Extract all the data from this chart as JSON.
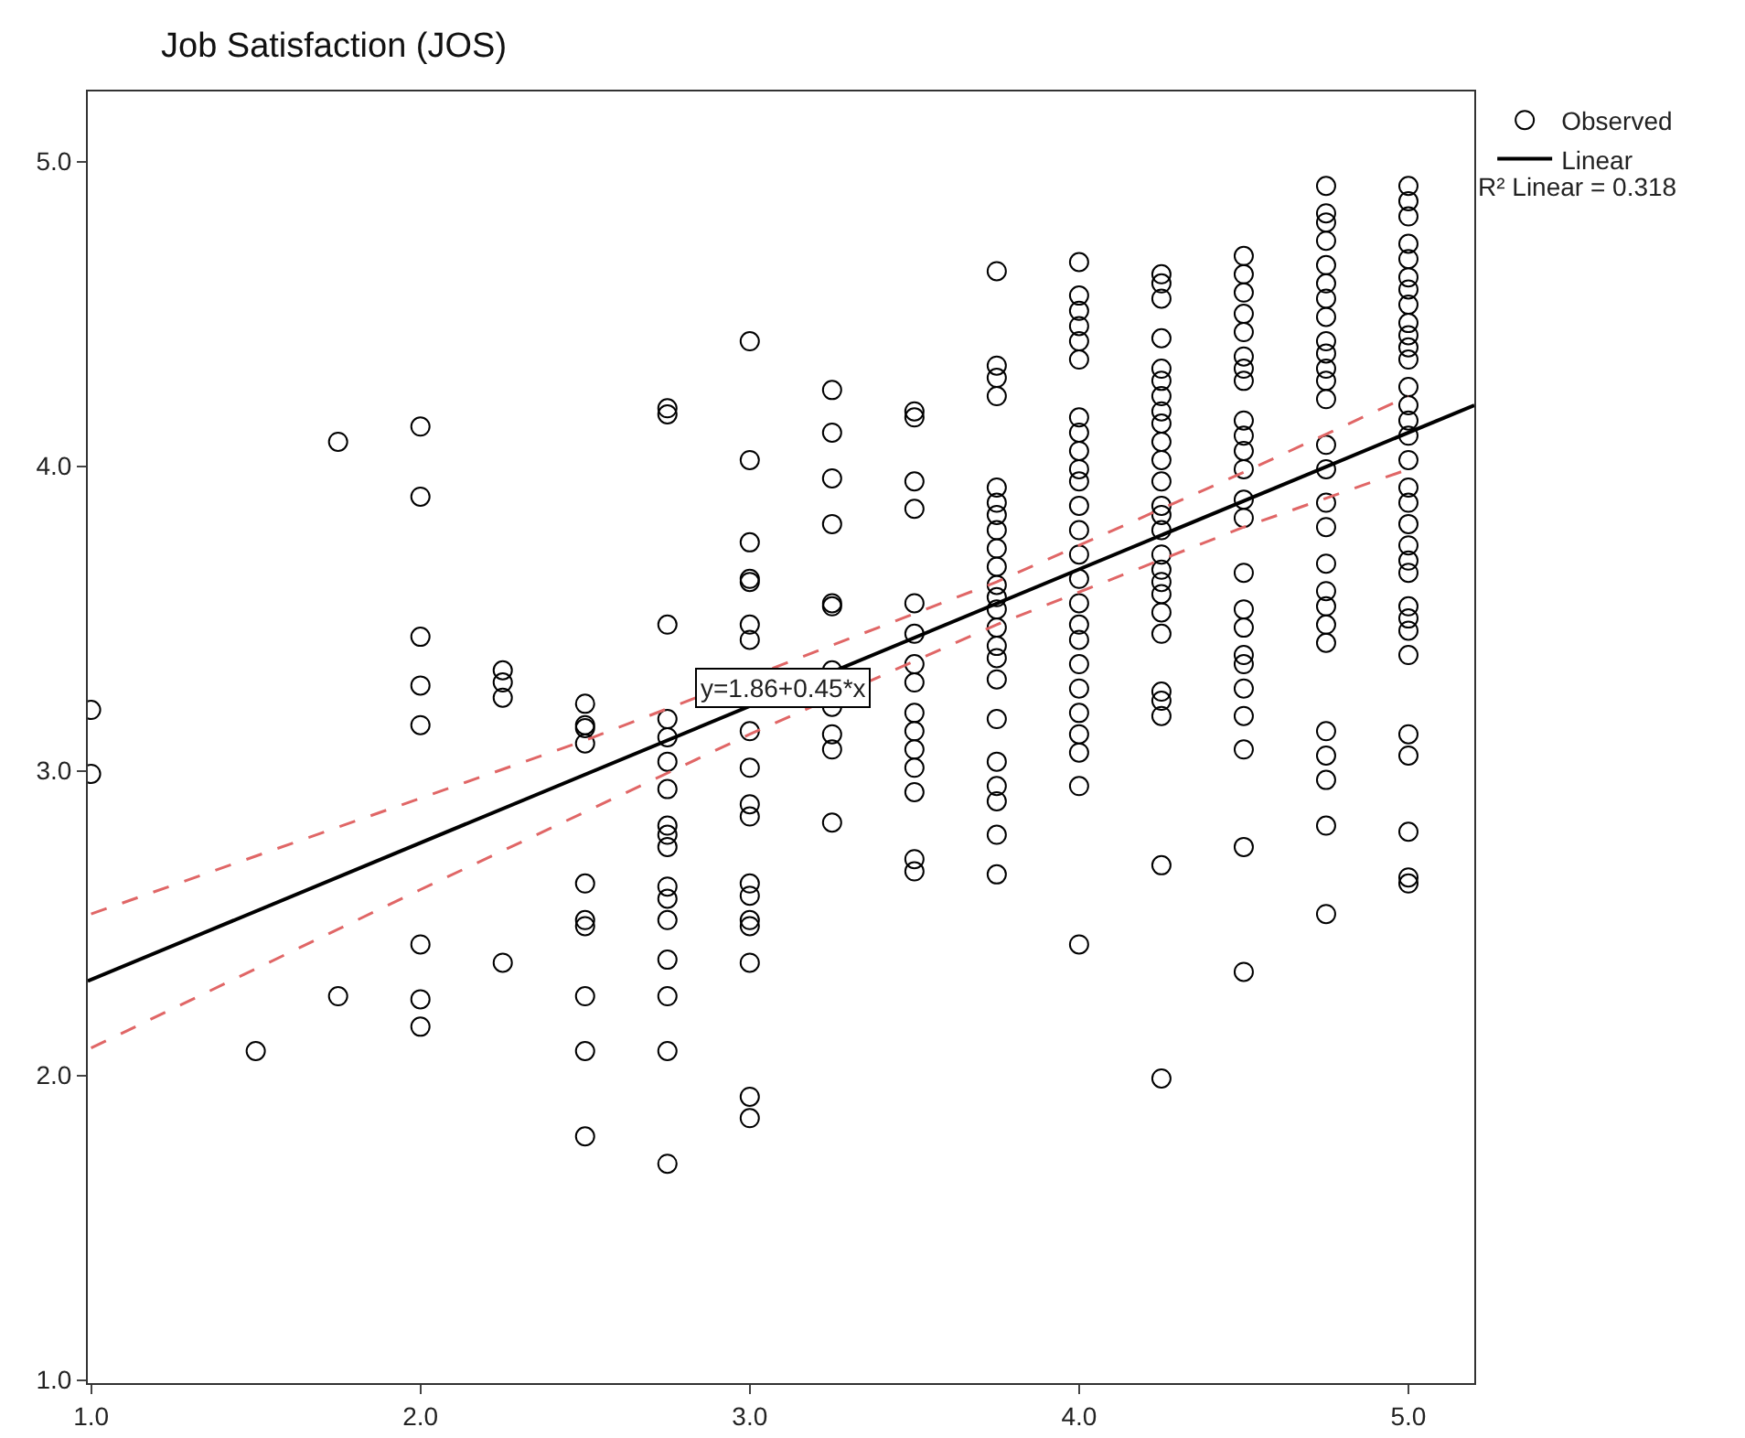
{
  "chart_data": {
    "type": "scatter",
    "ylabel": "Job Satisfaction (JOS)",
    "xlim": [
      0.99,
      5.2
    ],
    "ylim": [
      0.99,
      5.23
    ],
    "xticks": [
      {
        "value": 1,
        "label": "1.0"
      },
      {
        "value": 2,
        "label": "2.0"
      },
      {
        "value": 3,
        "label": "3.0"
      },
      {
        "value": 4,
        "label": "4.0"
      },
      {
        "value": 5,
        "label": "5.0"
      }
    ],
    "yticks": [
      {
        "value": 1,
        "label": "1.0"
      },
      {
        "value": 2,
        "label": "2.0"
      },
      {
        "value": 3,
        "label": "3.0"
      },
      {
        "value": 4,
        "label": "4.0"
      },
      {
        "value": 5,
        "label": "5.0"
      }
    ],
    "legend": "top right",
    "grid": false,
    "annotations": [
      {
        "text": "y=1.86+0.45*x",
        "x": 3.1,
        "y": 3.27
      },
      "R² Linear = 0.318"
    ],
    "series": [
      {
        "name": "Observed",
        "marker": "circle",
        "color": "#000000",
        "x": [
          1,
          1,
          1.5,
          1.75,
          1.75,
          2,
          2,
          2,
          2,
          2,
          2,
          2,
          2,
          2.25,
          2.25,
          2.25,
          2.25,
          2.5,
          2.5,
          2.5,
          2.5,
          2.5,
          2.5,
          2.5,
          2.5,
          2.5,
          2.5,
          2.75,
          2.75,
          2.75,
          2.75,
          2.75,
          2.75,
          2.75,
          2.75,
          2.75,
          2.75,
          2.75,
          2.75,
          2.75,
          2.75,
          2.75,
          2.75,
          2.75,
          3,
          3,
          3,
          3,
          3,
          3,
          3,
          3,
          3,
          3,
          3,
          3,
          3,
          3,
          3,
          3,
          3,
          3,
          3.25,
          3.25,
          3.25,
          3.25,
          3.25,
          3.25,
          3.25,
          3.25,
          3.25,
          3.25,
          3.25,
          3.5,
          3.5,
          3.5,
          3.5,
          3.5,
          3.5,
          3.5,
          3.5,
          3.5,
          3.5,
          3.5,
          3.5,
          3.5,
          3.5,
          3.5,
          3.75,
          3.75,
          3.75,
          3.75,
          3.75,
          3.75,
          3.75,
          3.75,
          3.75,
          3.75,
          3.75,
          3.75,
          3.75,
          3.75,
          3.75,
          3.75,
          3.75,
          3.75,
          3.75,
          3.75,
          3.75,
          3.75,
          3.75,
          4,
          4,
          4,
          4,
          4,
          4,
          4,
          4,
          4,
          4,
          4,
          4,
          4,
          4,
          4,
          4,
          4,
          4,
          4,
          4,
          4,
          4,
          4,
          4,
          4,
          4.25,
          4.25,
          4.25,
          4.25,
          4.25,
          4.25,
          4.25,
          4.25,
          4.25,
          4.25,
          4.25,
          4.25,
          4.25,
          4.25,
          4.25,
          4.25,
          4.25,
          4.25,
          4.25,
          4.25,
          4.25,
          4.25,
          4.25,
          4.25,
          4.25,
          4.25,
          4.5,
          4.5,
          4.5,
          4.5,
          4.5,
          4.5,
          4.5,
          4.5,
          4.5,
          4.5,
          4.5,
          4.5,
          4.5,
          4.5,
          4.5,
          4.5,
          4.5,
          4.5,
          4.5,
          4.5,
          4.5,
          4.5,
          4.5,
          4.5,
          4.75,
          4.75,
          4.75,
          4.75,
          4.75,
          4.75,
          4.75,
          4.75,
          4.75,
          4.75,
          4.75,
          4.75,
          4.75,
          4.75,
          4.75,
          4.75,
          4.75,
          4.75,
          4.75,
          4.75,
          4.75,
          4.75,
          4.75,
          4.75,
          4.75,
          4.75,
          4.75,
          5,
          5,
          5,
          5,
          5,
          5,
          5,
          5,
          5,
          5,
          5,
          5,
          5,
          5,
          5,
          5,
          5,
          5,
          5,
          5,
          5,
          5,
          5,
          5,
          5,
          5,
          5,
          5,
          5,
          5,
          5,
          5
        ],
        "values": [
          3.2,
          2.99,
          2.08,
          4.08,
          2.26,
          4.13,
          3.9,
          3.44,
          3.28,
          3.15,
          2.43,
          2.25,
          2.16,
          3.33,
          3.29,
          3.24,
          2.37,
          3.22,
          3.15,
          3.14,
          3.09,
          2.63,
          2.51,
          2.49,
          2.26,
          2.08,
          1.8,
          4.19,
          4.17,
          3.48,
          3.17,
          3.11,
          3.03,
          2.94,
          2.82,
          2.79,
          2.75,
          2.62,
          2.58,
          2.51,
          2.38,
          2.26,
          2.08,
          1.71,
          4.41,
          4.02,
          3.75,
          3.63,
          3.62,
          3.48,
          3.43,
          3.13,
          3.01,
          2.89,
          2.85,
          2.63,
          2.59,
          2.51,
          2.49,
          2.37,
          1.93,
          1.86,
          4.25,
          4.11,
          3.96,
          3.81,
          3.55,
          3.54,
          3.33,
          3.21,
          3.12,
          3.07,
          2.83,
          4.18,
          4.16,
          3.95,
          3.86,
          3.55,
          3.45,
          3.35,
          3.29,
          3.19,
          3.13,
          3.07,
          3.01,
          2.93,
          2.71,
          2.67,
          4.64,
          4.33,
          4.29,
          4.23,
          3.93,
          3.88,
          3.84,
          3.79,
          3.73,
          3.67,
          3.61,
          3.57,
          3.53,
          3.47,
          3.41,
          3.37,
          3.3,
          3.17,
          3.03,
          2.95,
          2.9,
          2.79,
          2.66,
          4.67,
          4.56,
          4.51,
          4.46,
          4.41,
          4.35,
          4.16,
          4.11,
          4.05,
          3.99,
          3.95,
          3.87,
          3.79,
          3.71,
          3.63,
          3.55,
          3.48,
          3.43,
          3.35,
          3.27,
          3.19,
          3.12,
          3.06,
          2.95,
          2.43,
          4.63,
          4.6,
          4.55,
          4.42,
          4.32,
          4.28,
          4.23,
          4.18,
          4.14,
          4.08,
          4.02,
          3.95,
          3.87,
          3.84,
          3.79,
          3.71,
          3.66,
          3.62,
          3.58,
          3.52,
          3.45,
          3.26,
          3.23,
          3.18,
          2.69,
          1.99,
          4.69,
          4.63,
          4.57,
          4.5,
          4.44,
          4.36,
          4.32,
          4.28,
          4.15,
          4.1,
          4.05,
          3.99,
          3.89,
          3.83,
          3.65,
          3.53,
          3.47,
          3.38,
          3.35,
          3.27,
          3.18,
          3.07,
          2.75,
          2.34,
          4.92,
          4.83,
          4.8,
          4.74,
          4.66,
          4.6,
          4.55,
          4.49,
          4.41,
          4.37,
          4.32,
          4.28,
          4.22,
          4.07,
          3.99,
          3.88,
          3.8,
          3.68,
          3.59,
          3.54,
          3.48,
          3.42,
          3.13,
          3.05,
          2.97,
          2.82,
          2.53,
          4.92,
          4.87,
          4.82,
          4.73,
          4.68,
          4.62,
          4.58,
          4.53,
          4.47,
          4.43,
          4.39,
          4.35,
          4.26,
          4.2,
          4.15,
          4.1,
          4.02,
          3.93,
          3.88,
          3.81,
          3.74,
          3.69,
          3.65,
          3.54,
          3.5,
          3.46,
          3.38,
          3.12,
          3.05,
          2.8,
          2.65,
          2.63
        ]
      },
      {
        "name": "Linear",
        "type": "line",
        "marker": "none",
        "line_style": "solid",
        "color": "#000000",
        "x": [
          0.99,
          5.2
        ],
        "values": [
          2.31,
          4.2
        ]
      },
      {
        "type": "line",
        "marker": "none",
        "line_style": "dashed",
        "color": "#e06666",
        "x": [
          1,
          2,
          2.5,
          3.75,
          4.5,
          5
        ],
        "values": [
          2.53,
          2.91,
          3.1,
          3.62,
          3.98,
          4.23
        ]
      },
      {
        "type": "line",
        "marker": "none",
        "line_style": "dashed",
        "color": "#e06666",
        "x": [
          1,
          2,
          3,
          3.75,
          4.5,
          5
        ],
        "values": [
          2.09,
          2.61,
          3.12,
          3.48,
          3.8,
          3.99
        ]
      }
    ]
  }
}
